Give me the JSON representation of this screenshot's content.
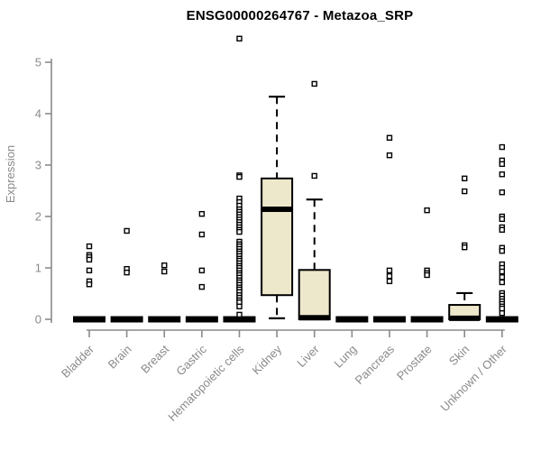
{
  "colors": {
    "box_fill": "#EDE7CC",
    "box_stroke": "#000000",
    "median_color": "#000000",
    "axis_color": "#8a8a8a",
    "axis_text_color": "#8a8a8a",
    "title_color": "#000000",
    "outlier_fill": "#ffffff",
    "outlier_stroke": "#000000",
    "background": "#ffffff"
  },
  "chart_data": {
    "type": "boxplot",
    "title": "ENSG00000264767 - Metazoa_SRP",
    "ylabel": "Expression",
    "xlabel": "",
    "ylim": [
      0,
      5.6
    ],
    "yticks": [
      0,
      1,
      2,
      3,
      4,
      5
    ],
    "grid": false,
    "legend": false,
    "categories": [
      "Bladder",
      "Brain",
      "Breast",
      "Gastric",
      "Hematopoietic cells",
      "Kidney",
      "Liver",
      "Lung",
      "Pancreas",
      "Prostate",
      "Skin",
      "Unknown / Other"
    ],
    "series": [
      {
        "name": "Bladder",
        "q1": 0,
        "median": 0,
        "q3": 0,
        "whisker_low": 0,
        "whisker_high": 0,
        "outliers": [
          1.42,
          1.25,
          1.21,
          1.16,
          0.95,
          0.74,
          0.68
        ]
      },
      {
        "name": "Brain",
        "q1": 0,
        "median": 0,
        "q3": 0,
        "whisker_low": 0,
        "whisker_high": 0,
        "outliers": [
          1.72,
          0.98,
          0.91
        ]
      },
      {
        "name": "Breast",
        "q1": 0,
        "median": 0,
        "q3": 0,
        "whisker_low": 0,
        "whisker_high": 0,
        "outliers": [
          1.05,
          0.93
        ]
      },
      {
        "name": "Gastric",
        "q1": 0,
        "median": 0,
        "q3": 0,
        "whisker_low": 0,
        "whisker_high": 0,
        "outliers": [
          2.05,
          1.65,
          0.95,
          0.63
        ]
      },
      {
        "name": "Hematopoietic cells",
        "q1": 0,
        "median": 0,
        "q3": 0,
        "whisker_low": 0,
        "whisker_high": 0,
        "outliers": [
          5.46,
          2.8,
          2.77,
          2.35,
          2.28,
          2.21,
          2.14,
          2.09,
          2.04,
          1.99,
          1.94,
          1.89,
          1.84,
          1.79,
          1.74,
          1.7,
          1.51,
          1.46,
          1.42,
          1.37,
          1.32,
          1.28,
          1.23,
          1.18,
          1.14,
          1.09,
          1.04,
          1.0,
          0.95,
          0.9,
          0.86,
          0.81,
          0.76,
          0.72,
          0.67,
          0.62,
          0.58,
          0.53,
          0.47,
          0.42,
          0.37,
          0.33,
          0.25,
          0.09
        ]
      },
      {
        "name": "Kidney",
        "q1": 0.47,
        "median": 2.14,
        "q3": 2.74,
        "whisker_low": 0.02,
        "whisker_high": 4.33,
        "outliers": []
      },
      {
        "name": "Liver",
        "q1": 0,
        "median": 0.03,
        "q3": 0.96,
        "whisker_low": 0,
        "whisker_high": 2.33,
        "outliers": [
          4.58,
          2.79
        ]
      },
      {
        "name": "Lung",
        "q1": 0,
        "median": 0,
        "q3": 0,
        "whisker_low": 0,
        "whisker_high": 0,
        "outliers": []
      },
      {
        "name": "Pancreas",
        "q1": 0,
        "median": 0,
        "q3": 0,
        "whisker_low": 0,
        "whisker_high": 0,
        "outliers": [
          3.53,
          3.19,
          0.95,
          0.84,
          0.74
        ]
      },
      {
        "name": "Prostate",
        "q1": 0,
        "median": 0,
        "q3": 0,
        "whisker_low": 0,
        "whisker_high": 0,
        "outliers": [
          2.12,
          0.95,
          0.9,
          0.86
        ]
      },
      {
        "name": "Skin",
        "q1": 0,
        "median": 0.02,
        "q3": 0.28,
        "whisker_low": 0,
        "whisker_high": 0.51,
        "outliers": [
          2.74,
          2.49,
          1.44,
          1.4
        ]
      },
      {
        "name": "Unknown / Other",
        "q1": 0,
        "median": 0,
        "q3": 0,
        "whisker_low": 0,
        "whisker_high": 0,
        "outliers": [
          3.35,
          3.09,
          3.02,
          2.82,
          2.47,
          2.0,
          1.95,
          1.79,
          1.74,
          1.39,
          1.33,
          1.07,
          1.0,
          0.93,
          0.82,
          0.72,
          0.51,
          0.46,
          0.4,
          0.35,
          0.3,
          0.25,
          0.21,
          0.12
        ]
      }
    ]
  }
}
